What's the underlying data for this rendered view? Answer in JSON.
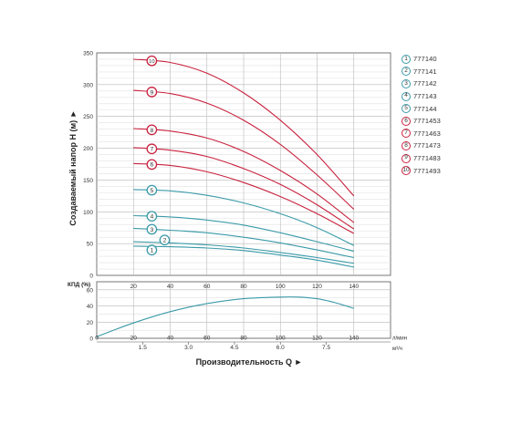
{
  "chart_data": [
    {
      "type": "line",
      "ylabel": "Создаваемый напор H (м) ►",
      "xlim": [
        0,
        160
      ],
      "ylim": [
        0,
        350
      ],
      "xticks": [
        20,
        40,
        60,
        80,
        100,
        120,
        140
      ],
      "yticks": [
        0,
        50,
        100,
        150,
        200,
        250,
        300,
        350
      ],
      "grid": true,
      "series": [
        {
          "name": "777140",
          "badge": "1",
          "color": "#3a9aa8",
          "x": [
            20,
            40,
            60,
            80,
            100,
            120,
            140
          ],
          "y": [
            46,
            45,
            43,
            39,
            32,
            24,
            13
          ]
        },
        {
          "name": "777141",
          "badge": "2",
          "color": "#3a9aa8",
          "x": [
            20,
            40,
            60,
            80,
            100,
            120,
            140
          ],
          "y": [
            53,
            51,
            48,
            43,
            36,
            28,
            19
          ]
        },
        {
          "name": "777142",
          "badge": "3",
          "color": "#3a9aa8",
          "x": [
            20,
            40,
            60,
            80,
            100,
            120,
            140
          ],
          "y": [
            74,
            71,
            67,
            60,
            51,
            40,
            28
          ]
        },
        {
          "name": "777143",
          "badge": "4",
          "color": "#3a9aa8",
          "x": [
            20,
            40,
            60,
            80,
            100,
            120,
            140
          ],
          "y": [
            94,
            92,
            87,
            79,
            67,
            53,
            38
          ]
        },
        {
          "name": "777144",
          "badge": "5",
          "color": "#3a9aa8",
          "x": [
            20,
            40,
            60,
            80,
            100,
            120,
            140
          ],
          "y": [
            135,
            133,
            126,
            114,
            97,
            75,
            47
          ]
        },
        {
          "name": "7771453",
          "badge": "6",
          "color": "#c8223e",
          "x": [
            20,
            40,
            60,
            80,
            100,
            120,
            140
          ],
          "y": [
            176,
            173,
            163,
            146,
            124,
            97,
            66
          ]
        },
        {
          "name": "7771463",
          "badge": "7",
          "color": "#c8223e",
          "x": [
            20,
            40,
            60,
            80,
            100,
            120,
            140
          ],
          "y": [
            201,
            197,
            187,
            168,
            143,
            111,
            73
          ]
        },
        {
          "name": "7771473",
          "badge": "8",
          "color": "#c8223e",
          "x": [
            20,
            40,
            60,
            80,
            100,
            120,
            140
          ],
          "y": [
            231,
            227,
            216,
            195,
            165,
            128,
            83
          ]
        },
        {
          "name": "7771483",
          "badge": "9",
          "color": "#c8223e",
          "x": [
            20,
            40,
            60,
            80,
            100,
            120,
            140
          ],
          "y": [
            291,
            286,
            271,
            244,
            206,
            158,
            104
          ]
        },
        {
          "name": "7771493",
          "badge": "10",
          "color": "#c8223e",
          "x": [
            20,
            40,
            60,
            80,
            100,
            120,
            140
          ],
          "y": [
            340,
            335,
            318,
            287,
            244,
            190,
            125
          ]
        }
      ]
    },
    {
      "type": "line",
      "ylabel": "КПД (%)",
      "xlabel": "Производительность Q ►",
      "xlim": [
        0,
        160
      ],
      "ylim": [
        0,
        70
      ],
      "xticks": [
        0,
        20,
        40,
        60,
        80,
        100,
        120,
        140
      ],
      "yticks": [
        0,
        20,
        40,
        60
      ],
      "xunit": "л/мин",
      "x2ticks": [
        "1.5",
        "3.0",
        "4.5",
        "6.0",
        "7.5"
      ],
      "x2tick_positions": [
        25,
        50,
        75,
        100,
        125
      ],
      "x2unit": "м³/ч",
      "grid": true,
      "series": [
        {
          "color": "#3a9aa8",
          "x": [
            0,
            20,
            40,
            60,
            80,
            100,
            110,
            120,
            130,
            140
          ],
          "y": [
            2,
            19,
            33,
            43,
            49,
            51,
            51,
            49,
            44,
            37
          ]
        }
      ]
    }
  ]
}
